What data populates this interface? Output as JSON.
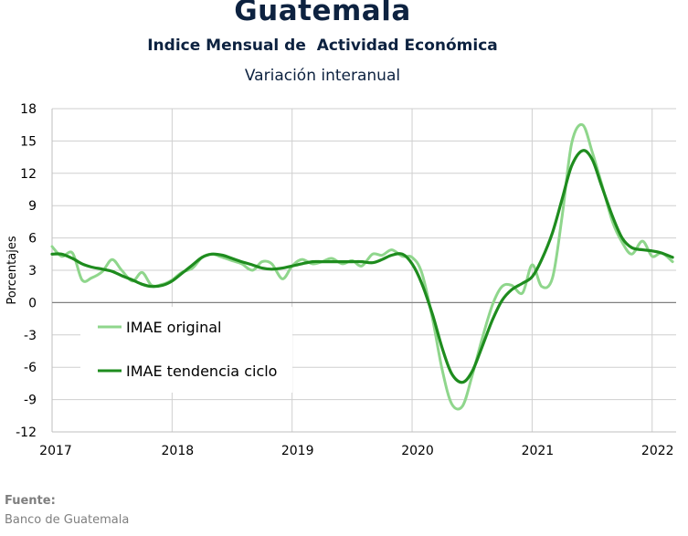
{
  "chart_data": {
    "type": "line",
    "title": "Guatemala",
    "subtitle": "Indice Mensual de  Actividad Económica",
    "subtitle2": "Variación interanual",
    "ylabel": "Porcentajes",
    "xlabel": "",
    "ylim": [
      -12,
      18
    ],
    "yticks": [
      18,
      15,
      12,
      9,
      6,
      3,
      0,
      -3,
      -6,
      -9,
      -12
    ],
    "xlim": [
      2017,
      2022.2
    ],
    "xticks": [
      2017,
      2018,
      2019,
      2020,
      2021,
      2022
    ],
    "grid": true,
    "legend": "center-left",
    "series": [
      {
        "name": "IMAE original",
        "color": "#8fd68c",
        "x": [
          2017.0,
          2017.08,
          2017.17,
          2017.25,
          2017.33,
          2017.42,
          2017.5,
          2017.58,
          2017.67,
          2017.75,
          2017.83,
          2017.92,
          2018.0,
          2018.08,
          2018.17,
          2018.25,
          2018.33,
          2018.42,
          2018.5,
          2018.58,
          2018.67,
          2018.75,
          2018.83,
          2018.92,
          2019.0,
          2019.08,
          2019.17,
          2019.25,
          2019.33,
          2019.42,
          2019.5,
          2019.58,
          2019.67,
          2019.75,
          2019.83,
          2019.92,
          2020.0,
          2020.08,
          2020.17,
          2020.25,
          2020.33,
          2020.42,
          2020.5,
          2020.58,
          2020.67,
          2020.75,
          2020.83,
          2020.92,
          2021.0,
          2021.08,
          2021.17,
          2021.25,
          2021.33,
          2021.42,
          2021.5,
          2021.58,
          2021.67,
          2021.75,
          2021.83,
          2021.92,
          2022.0,
          2022.08,
          2022.17
        ],
        "values": [
          5.2,
          4.3,
          4.6,
          2.1,
          2.3,
          2.9,
          4.0,
          3.0,
          2.0,
          2.8,
          1.6,
          1.7,
          2.1,
          2.8,
          3.2,
          4.2,
          4.5,
          4.2,
          3.9,
          3.6,
          3.0,
          3.8,
          3.6,
          2.2,
          3.4,
          4.0,
          3.6,
          3.8,
          4.1,
          3.6,
          3.9,
          3.4,
          4.5,
          4.4,
          4.9,
          4.3,
          4.2,
          2.8,
          -1.5,
          -6.2,
          -9.4,
          -9.6,
          -6.8,
          -3.5,
          -0.2,
          1.5,
          1.6,
          0.9,
          3.5,
          1.5,
          2.3,
          8.0,
          14.8,
          16.5,
          14.0,
          11.0,
          7.5,
          5.6,
          4.5,
          5.7,
          4.3,
          4.6,
          3.8
        ]
      },
      {
        "name": "IMAE tendencia ciclo",
        "color": "#1e8c1e",
        "x": [
          2017.0,
          2017.08,
          2017.17,
          2017.25,
          2017.33,
          2017.42,
          2017.5,
          2017.58,
          2017.67,
          2017.75,
          2017.83,
          2017.92,
          2018.0,
          2018.08,
          2018.17,
          2018.25,
          2018.33,
          2018.42,
          2018.5,
          2018.58,
          2018.67,
          2018.75,
          2018.83,
          2018.92,
          2019.0,
          2019.08,
          2019.17,
          2019.25,
          2019.33,
          2019.42,
          2019.5,
          2019.58,
          2019.67,
          2019.75,
          2019.83,
          2019.92,
          2020.0,
          2020.08,
          2020.17,
          2020.25,
          2020.33,
          2020.42,
          2020.5,
          2020.58,
          2020.67,
          2020.75,
          2020.83,
          2020.92,
          2021.0,
          2021.08,
          2021.17,
          2021.25,
          2021.33,
          2021.42,
          2021.5,
          2021.58,
          2021.67,
          2021.75,
          2021.83,
          2021.92,
          2022.0,
          2022.08,
          2022.17
        ],
        "values": [
          4.5,
          4.5,
          4.1,
          3.6,
          3.3,
          3.1,
          2.9,
          2.5,
          2.1,
          1.7,
          1.5,
          1.6,
          2.0,
          2.7,
          3.5,
          4.2,
          4.5,
          4.4,
          4.1,
          3.8,
          3.5,
          3.2,
          3.1,
          3.2,
          3.4,
          3.6,
          3.8,
          3.8,
          3.8,
          3.8,
          3.8,
          3.8,
          3.7,
          4.0,
          4.4,
          4.5,
          3.6,
          1.8,
          -1.1,
          -4.2,
          -6.6,
          -7.4,
          -6.4,
          -4.2,
          -1.6,
          0.2,
          1.2,
          1.8,
          2.4,
          4.0,
          6.5,
          9.6,
          12.7,
          14.1,
          13.3,
          10.8,
          8.0,
          6.0,
          5.1,
          4.9,
          4.8,
          4.6,
          4.2
        ]
      }
    ]
  },
  "source": {
    "label": "Fuente:",
    "value": "Banco de Guatemala"
  }
}
